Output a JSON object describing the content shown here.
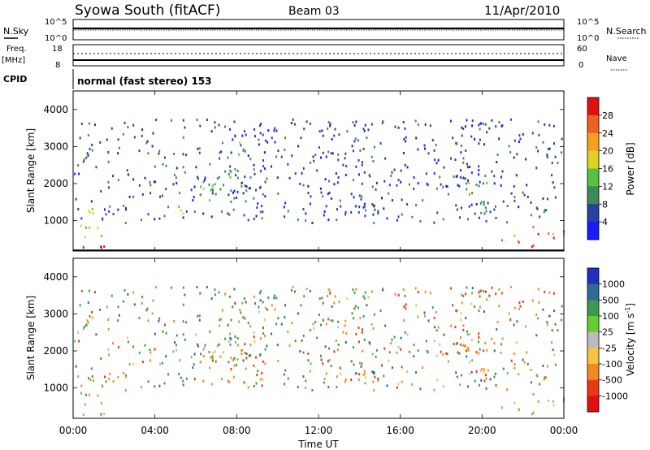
{
  "header": {
    "station": "Syowa South (fitACF)",
    "beam": "Beam 03",
    "date": "11/Apr/2010"
  },
  "noise_panel": {
    "left_label": "N.Sky",
    "right_label": "N.Search",
    "left_ticks": [
      "10^5",
      "10^0"
    ],
    "right_ticks": [
      "10^5",
      "10^0"
    ]
  },
  "freq_panel": {
    "left_label": "Freq.",
    "left_unit": "[MHz]",
    "right_label": "Nave",
    "left_ticks": [
      "18",
      "8"
    ],
    "right_ticks": [
      "60",
      "0"
    ]
  },
  "cpid": {
    "label": "CPID",
    "text": "normal (fast stereo) 153"
  },
  "power_panel": {
    "ylabel": "Slant Range [km]",
    "yticks": [
      "1000",
      "2000",
      "3000",
      "4000"
    ],
    "colorbar_label": "Power [dB]",
    "colorbar_ticks": [
      "4",
      "8",
      "12",
      "16",
      "20",
      "24",
      "28"
    ],
    "colorbar_colors": [
      "#1a1aff",
      "#2a3fa0",
      "#3a8a5a",
      "#55c240",
      "#e0d020",
      "#f7a020",
      "#f06020",
      "#e01010"
    ]
  },
  "velocity_panel": {
    "ylabel": "Slant Range [km]",
    "yticks": [
      "1000",
      "2000",
      "3000",
      "4000"
    ],
    "colorbar_label": "Velocity [m s",
    "colorbar_label_sup": "-1",
    "colorbar_label_end": "]",
    "colorbar_ticks": [
      "1000",
      "500",
      "100",
      "25",
      "-25",
      "-100",
      "-500",
      "-1000"
    ],
    "colorbar_colors": [
      "#2030c0",
      "#2f6a9a",
      "#3a9a50",
      "#66cc33",
      "#bbbbbb",
      "#f5c542",
      "#f28a22",
      "#e63a10",
      "#e01010"
    ]
  },
  "xaxis": {
    "label": "Time UT",
    "ticks": [
      "00:00",
      "04:00",
      "08:00",
      "12:00",
      "16:00",
      "20:00",
      "00:00"
    ]
  },
  "chart_data": {
    "type": "heatmap",
    "x_unit": "hours UT",
    "xlim": [
      0,
      24
    ],
    "ylim_km": [
      180,
      4500
    ],
    "power_ylim_db": [
      0,
      32
    ],
    "velocity_ylim": [
      -1200,
      1200
    ],
    "bands": [
      {
        "t0": 0.0,
        "t1": 2.0,
        "r0": 200,
        "r1": 400,
        "power": 28,
        "velocity": 25
      },
      {
        "t0": 0.2,
        "t1": 1.6,
        "r0": 400,
        "r1": 1300,
        "power": 16,
        "velocity": 100
      },
      {
        "t0": 4.3,
        "t1": 6.0,
        "r0": 1150,
        "r1": 1350,
        "power": 16,
        "velocity": 100
      },
      {
        "t0": 5.8,
        "t1": 7.5,
        "r0": 1400,
        "r1": 2000,
        "power": 14,
        "velocity": -100
      },
      {
        "t0": 6.6,
        "t1": 8.6,
        "r0": 1700,
        "r1": 2300,
        "power": 12,
        "velocity": 100
      },
      {
        "t0": 7.8,
        "t1": 8.8,
        "r0": 2700,
        "r1": 3100,
        "power": 12,
        "velocity": -100
      },
      {
        "t0": 18.9,
        "t1": 20.2,
        "r0": 1200,
        "r1": 2200,
        "power": 14,
        "velocity": -100
      },
      {
        "t0": 20.8,
        "t1": 22.0,
        "r0": 200,
        "r1": 600,
        "power": 24,
        "velocity": 25
      },
      {
        "t0": 22.4,
        "t1": 24.0,
        "r0": 200,
        "r1": 800,
        "power": 24,
        "velocity": 25
      }
    ]
  }
}
